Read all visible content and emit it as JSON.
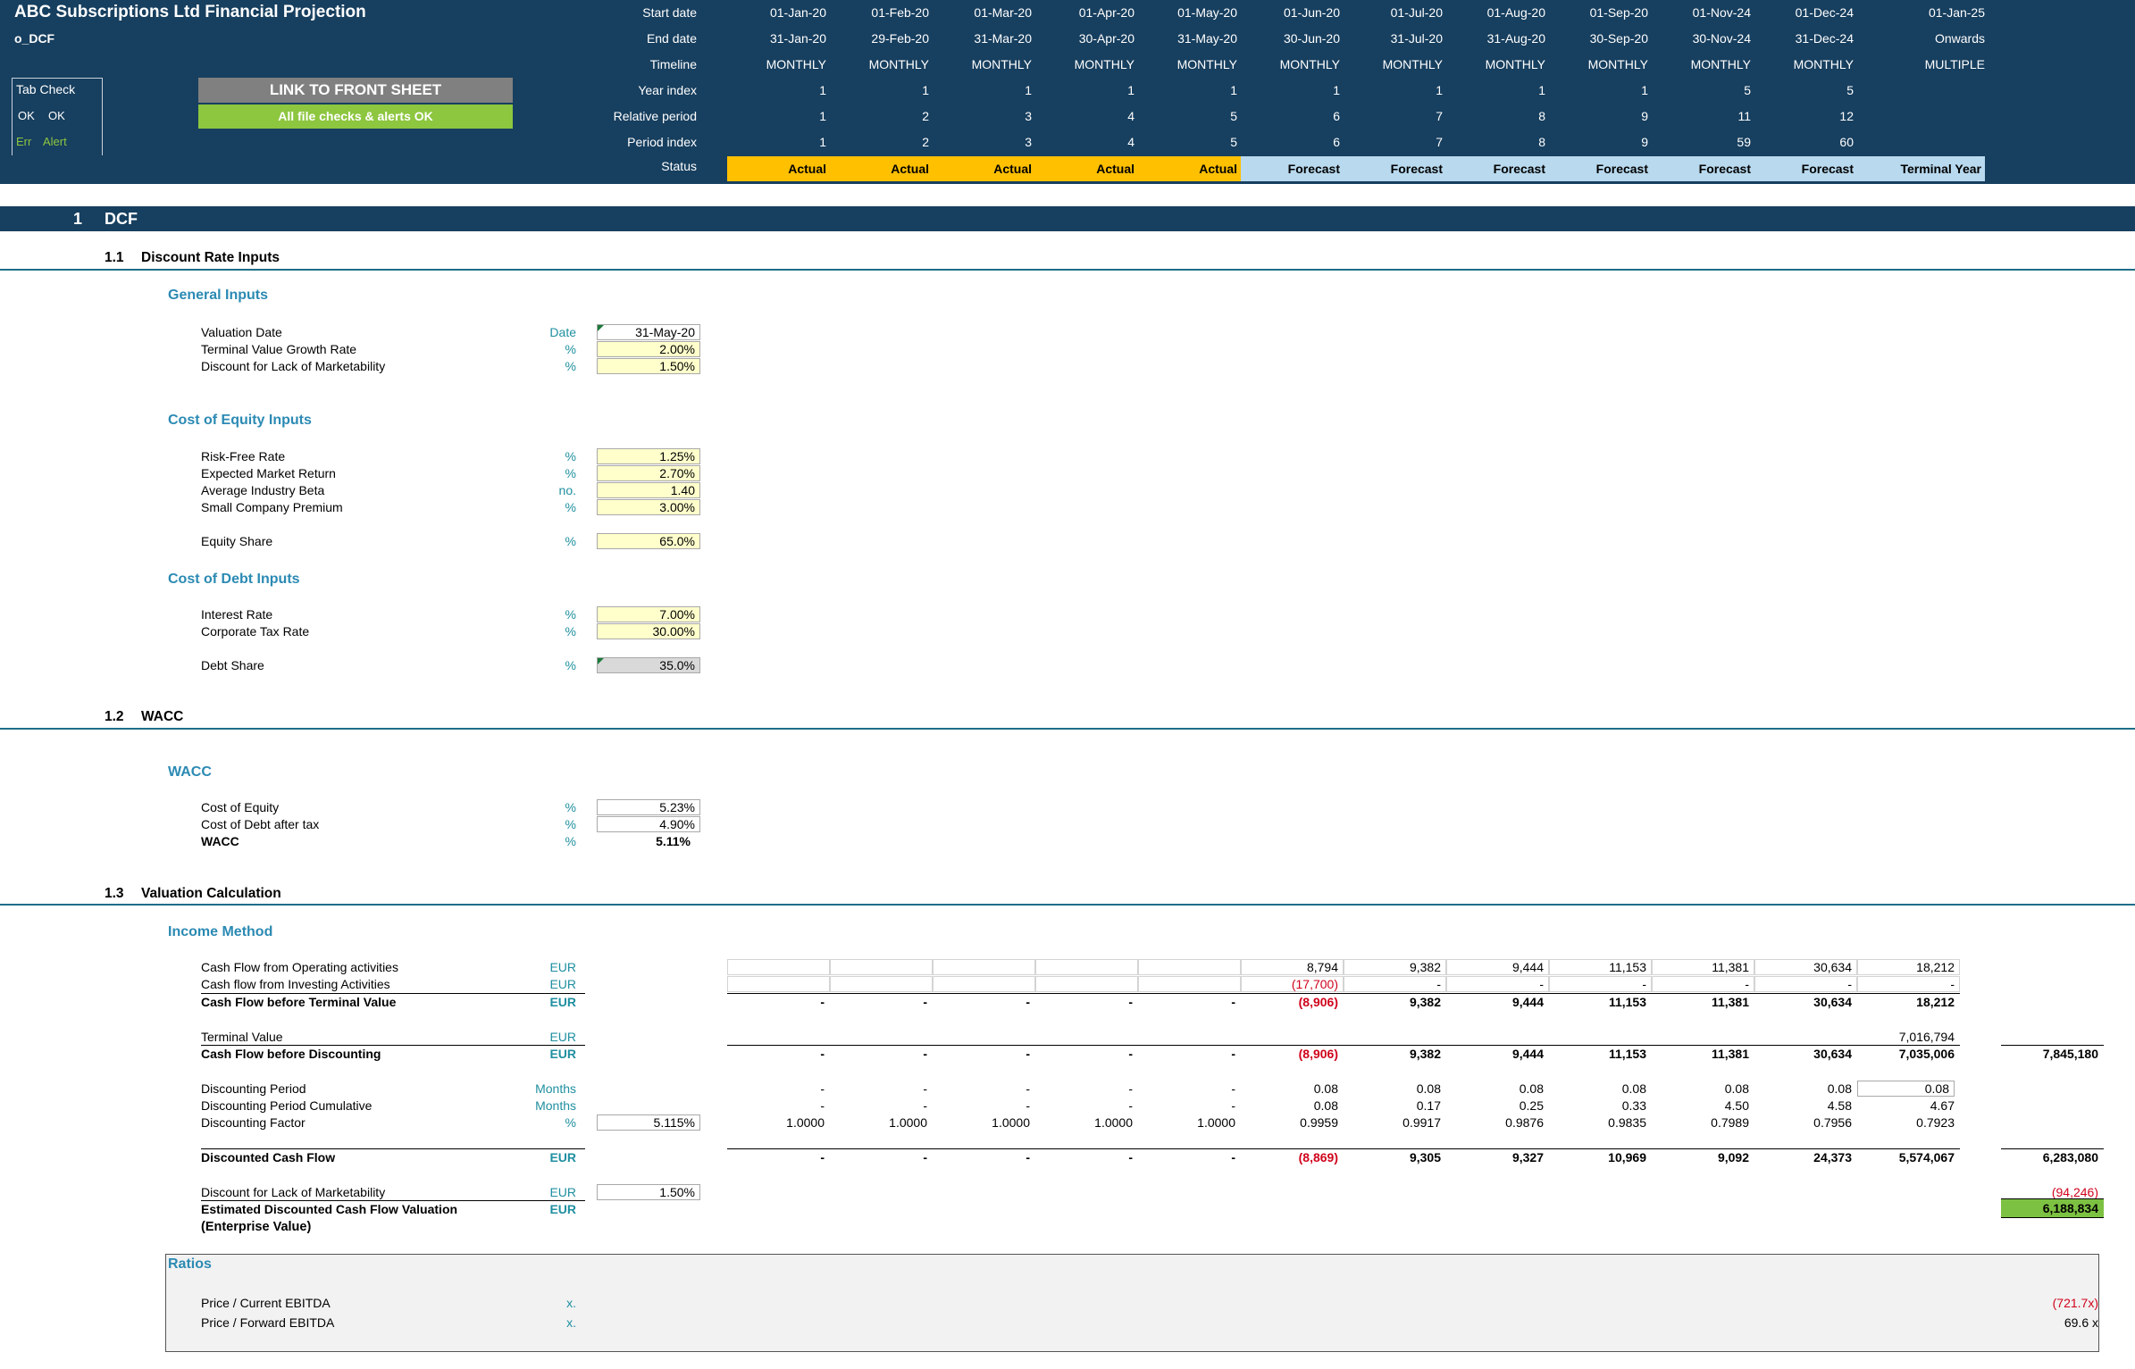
{
  "header": {
    "title": "ABC Subscriptions Ltd Financial Projection",
    "sheet_code": "o_DCF",
    "tab_check": {
      "label": "Tab Check",
      "ok1": "OK",
      "ok2": "OK",
      "err": "Err",
      "alert": "Alert"
    },
    "link_button": "LINK TO FRONT SHEET",
    "checks_status": "All file checks & alerts OK",
    "row_labels": [
      "Start date",
      "End date",
      "Timeline",
      "Year index",
      "Relative period",
      "Period index",
      "Status"
    ],
    "columns": [
      {
        "start": "01-Jan-20",
        "end": "31-Jan-20",
        "timeline": "MONTHLY",
        "year": "1",
        "rel": "1",
        "idx": "1",
        "status": "Actual"
      },
      {
        "start": "01-Feb-20",
        "end": "29-Feb-20",
        "timeline": "MONTHLY",
        "year": "1",
        "rel": "2",
        "idx": "2",
        "status": "Actual"
      },
      {
        "start": "01-Mar-20",
        "end": "31-Mar-20",
        "timeline": "MONTHLY",
        "year": "1",
        "rel": "3",
        "idx": "3",
        "status": "Actual"
      },
      {
        "start": "01-Apr-20",
        "end": "30-Apr-20",
        "timeline": "MONTHLY",
        "year": "1",
        "rel": "4",
        "idx": "4",
        "status": "Actual"
      },
      {
        "start": "01-May-20",
        "end": "31-May-20",
        "timeline": "MONTHLY",
        "year": "1",
        "rel": "5",
        "idx": "5",
        "status": "Actual"
      },
      {
        "start": "01-Jun-20",
        "end": "30-Jun-20",
        "timeline": "MONTHLY",
        "year": "1",
        "rel": "6",
        "idx": "6",
        "status": "Forecast"
      },
      {
        "start": "01-Jul-20",
        "end": "31-Jul-20",
        "timeline": "MONTHLY",
        "year": "1",
        "rel": "7",
        "idx": "7",
        "status": "Forecast"
      },
      {
        "start": "01-Aug-20",
        "end": "31-Aug-20",
        "timeline": "MONTHLY",
        "year": "1",
        "rel": "8",
        "idx": "8",
        "status": "Forecast"
      },
      {
        "start": "01-Sep-20",
        "end": "30-Sep-20",
        "timeline": "MONTHLY",
        "year": "1",
        "rel": "9",
        "idx": "9",
        "status": "Forecast"
      },
      {
        "start": "01-Nov-24",
        "end": "30-Nov-24",
        "timeline": "MONTHLY",
        "year": "5",
        "rel": "11",
        "idx": "59",
        "status": "Forecast"
      },
      {
        "start": "01-Dec-24",
        "end": "31-Dec-24",
        "timeline": "MONTHLY",
        "year": "5",
        "rel": "12",
        "idx": "60",
        "status": "Forecast"
      },
      {
        "start": "01-Jan-25",
        "end": "Onwards",
        "timeline": "MULTIPLE",
        "year": "",
        "rel": "",
        "idx": "",
        "status": "Terminal Year"
      }
    ],
    "colors": {
      "band": "#173f5f",
      "actual": "#ffc000",
      "forecast": "#b8d9ee",
      "link_bg": "#808080",
      "ok_bg": "#8dc63f"
    }
  },
  "sections": {
    "dcf": {
      "num": "1",
      "title": "DCF"
    },
    "discount": {
      "num": "1.1",
      "title": "Discount Rate Inputs"
    },
    "wacc": {
      "num": "1.2",
      "title": "WACC"
    },
    "valuation": {
      "num": "1.3",
      "title": "Valuation Calculation"
    }
  },
  "general": {
    "heading": "General Inputs",
    "rows": [
      {
        "label": "Valuation Date",
        "unit": "Date",
        "value": "31-May-20"
      },
      {
        "label": "Terminal Value Growth Rate",
        "unit": "%",
        "value": "2.00%"
      },
      {
        "label": "Discount for Lack of Marketability",
        "unit": "%",
        "value": "1.50%"
      }
    ]
  },
  "equity": {
    "heading": "Cost of Equity Inputs",
    "rows": [
      {
        "label": "Risk-Free Rate",
        "unit": "%",
        "value": "1.25%"
      },
      {
        "label": "Expected Market Return",
        "unit": "%",
        "value": "2.70%"
      },
      {
        "label": "Average Industry Beta",
        "unit": "no.",
        "value": "1.40"
      },
      {
        "label": "Small Company Premium",
        "unit": "%",
        "value": "3.00%"
      },
      {
        "label": "Equity Share",
        "unit": "%",
        "value": "65.0%"
      }
    ]
  },
  "debt": {
    "heading": "Cost of Debt Inputs",
    "rows": [
      {
        "label": "Interest Rate",
        "unit": "%",
        "value": "7.00%"
      },
      {
        "label": "Corporate Tax Rate",
        "unit": "%",
        "value": "30.00%"
      },
      {
        "label": "Debt Share",
        "unit": "%",
        "value": "35.0%"
      }
    ]
  },
  "wacc_block": {
    "heading": "WACC",
    "rows": [
      {
        "label": "Cost of Equity",
        "unit": "%",
        "value": "5.23%"
      },
      {
        "label": "Cost of Debt after tax",
        "unit": "%",
        "value": "4.90%"
      },
      {
        "label": "WACC",
        "unit": "%",
        "value": "5.11%"
      }
    ]
  },
  "income": {
    "heading": "Income Method",
    "rows": [
      {
        "label": "Cash Flow from Operating activities",
        "unit": "EUR",
        "input": "",
        "vals": [
          "",
          "",
          "",
          "",
          "",
          "8,794",
          "9,382",
          "9,444",
          "11,153",
          "11,381",
          "30,634",
          "18,212"
        ],
        "total": ""
      },
      {
        "label": "Cash flow from Investing Activities",
        "unit": "EUR",
        "input": "",
        "vals": [
          "",
          "",
          "",
          "",
          "",
          "(17,700)",
          "-",
          "-",
          "-",
          "-",
          "-",
          "-"
        ],
        "total": ""
      },
      {
        "label": "Cash Flow before Terminal Value",
        "unit": "EUR",
        "input": "",
        "vals": [
          "-",
          "-",
          "-",
          "-",
          "-",
          "(8,906)",
          "9,382",
          "9,444",
          "11,153",
          "11,381",
          "30,634",
          "18,212"
        ],
        "total": ""
      },
      {
        "label": "Terminal Value",
        "unit": "EUR",
        "input": "",
        "vals": [
          "",
          "",
          "",
          "",
          "",
          "",
          "",
          "",
          "",
          "",
          "",
          "7,016,794"
        ],
        "total": ""
      },
      {
        "label": "Cash Flow before Discounting",
        "unit": "EUR",
        "input": "",
        "vals": [
          "-",
          "-",
          "-",
          "-",
          "-",
          "(8,906)",
          "9,382",
          "9,444",
          "11,153",
          "11,381",
          "30,634",
          "7,035,006"
        ],
        "total": "7,845,180"
      },
      {
        "label": "Discounting Period",
        "unit": "Months",
        "input": "",
        "vals": [
          "-",
          "-",
          "-",
          "-",
          "-",
          "0.08",
          "0.08",
          "0.08",
          "0.08",
          "0.08",
          "0.08",
          "0.08"
        ],
        "total": ""
      },
      {
        "label": "Discounting Period Cumulative",
        "unit": "Months",
        "input": "",
        "vals": [
          "-",
          "-",
          "-",
          "-",
          "-",
          "0.08",
          "0.17",
          "0.25",
          "0.33",
          "4.50",
          "4.58",
          "4.67"
        ],
        "total": ""
      },
      {
        "label": "Discounting Factor",
        "unit": "%",
        "input": "5.115%",
        "vals": [
          "1.0000",
          "1.0000",
          "1.0000",
          "1.0000",
          "1.0000",
          "0.9959",
          "0.9917",
          "0.9876",
          "0.9835",
          "0.7989",
          "0.7956",
          "0.7923"
        ],
        "total": ""
      },
      {
        "label": "Discounted Cash Flow",
        "unit": "EUR",
        "input": "",
        "vals": [
          "-",
          "-",
          "-",
          "-",
          "-",
          "(8,869)",
          "9,305",
          "9,327",
          "10,969",
          "9,092",
          "24,373",
          "5,574,067"
        ],
        "total": "6,283,080"
      },
      {
        "label": "Discount for Lack of Marketability",
        "unit": "EUR",
        "input": "1.50%",
        "vals": [
          "",
          "",
          "",
          "",
          "",
          "",
          "",
          "",
          "",
          "",
          "",
          ""
        ],
        "total": "(94,246)"
      },
      {
        "label": "Estimated Discounted Cash Flow Valuation",
        "unit": "EUR",
        "input": "",
        "vals": [
          "",
          "",
          "",
          "",
          "",
          "",
          "",
          "",
          "",
          "",
          "",
          ""
        ],
        "total": "6,188,834"
      }
    ],
    "ev_note": "(Enterprise Value)"
  },
  "ratios": {
    "heading": "Ratios",
    "rows": [
      {
        "label": "Price / Current EBITDA",
        "unit": "x.",
        "value": "(721.7x)"
      },
      {
        "label": "Price / Forward EBITDA",
        "unit": "x.",
        "value": "69.6 x"
      }
    ]
  }
}
